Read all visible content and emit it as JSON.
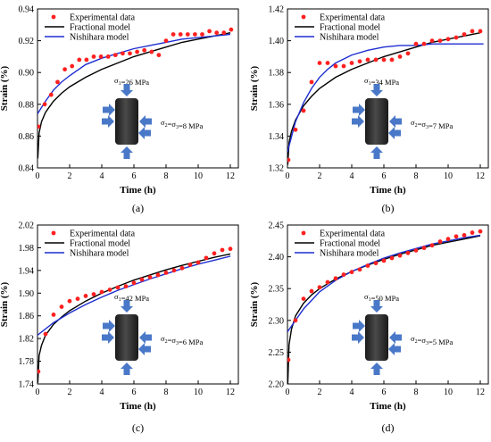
{
  "legend": {
    "experimental": "Experimental data",
    "fractional": "Fractional model",
    "nishihara": "Nishihara model"
  },
  "colors": {
    "experimental": "#ff2020",
    "fractional": "#000000",
    "nishihara": "#1f2fd0",
    "arrow": "#4a78c8",
    "cylinder": "#2f2f2f"
  },
  "chart_data": [
    {
      "type": "scatter",
      "panel_label": "(a)",
      "xlabel": "Time (h)",
      "ylabel": "Strain (%)",
      "xlim": [
        0,
        12.5
      ],
      "ylim": [
        0.84,
        0.94
      ],
      "xticks": [
        0,
        2,
        4,
        6,
        8,
        10,
        12
      ],
      "yticks": [
        0.84,
        0.86,
        0.88,
        0.9,
        0.92,
        0.94
      ],
      "ytick_decimals": 2,
      "legend_position": "top-left",
      "inset": {
        "sigma1": "σ1=26 MPa",
        "sigma23": "σ2=σ3=8 MPa"
      },
      "series": [
        {
          "name": "Experimental data",
          "x": [
            0.05,
            0.45,
            0.85,
            1.25,
            1.7,
            2.15,
            2.6,
            3.05,
            3.5,
            3.95,
            4.4,
            4.85,
            5.3,
            5.75,
            6.2,
            6.65,
            7.1,
            7.55,
            8.0,
            8.45,
            8.9,
            9.35,
            9.8,
            10.25,
            10.7,
            11.15,
            11.6,
            12.05
          ],
          "y": [
            0.866,
            0.88,
            0.886,
            0.894,
            0.902,
            0.904,
            0.908,
            0.908,
            0.91,
            0.91,
            0.91,
            0.911,
            0.912,
            0.912,
            0.913,
            0.914,
            0.913,
            0.911,
            0.92,
            0.924,
            0.924,
            0.924,
            0.924,
            0.924,
            0.926,
            0.925,
            0.925,
            0.927
          ]
        },
        {
          "name": "Fractional model",
          "x": [
            0.02,
            0.1,
            0.25,
            0.5,
            1,
            1.5,
            2,
            3,
            4,
            5,
            6,
            7,
            8,
            9,
            10,
            11,
            12
          ],
          "y": [
            0.846,
            0.862,
            0.869,
            0.875,
            0.882,
            0.887,
            0.891,
            0.897,
            0.902,
            0.906,
            0.91,
            0.913,
            0.916,
            0.919,
            0.921,
            0.923,
            0.925
          ]
        },
        {
          "name": "Nishihara model",
          "x": [
            0,
            0.5,
            1,
            1.5,
            2,
            3,
            4,
            5,
            6,
            7,
            8,
            9,
            10,
            11,
            12
          ],
          "y": [
            0.874,
            0.882,
            0.889,
            0.894,
            0.898,
            0.905,
            0.909,
            0.912,
            0.915,
            0.917,
            0.919,
            0.921,
            0.922,
            0.923,
            0.924
          ]
        }
      ]
    },
    {
      "type": "scatter",
      "panel_label": "(b)",
      "xlabel": "Time (h)",
      "ylabel": "Strain (%)",
      "xlim": [
        0,
        12.5
      ],
      "ylim": [
        1.32,
        1.42
      ],
      "xticks": [
        0,
        2,
        4,
        6,
        8,
        10,
        12
      ],
      "yticks": [
        1.32,
        1.34,
        1.36,
        1.38,
        1.4,
        1.42
      ],
      "ytick_decimals": 2,
      "legend_position": "top-left",
      "inset": {
        "sigma1": "σ1=34 MPa",
        "sigma23": "σ2=σ3=7 MPa"
      },
      "series": [
        {
          "name": "Experimental data",
          "x": [
            0.05,
            0.5,
            1.0,
            1.5,
            2.0,
            2.5,
            3.0,
            3.5,
            4.0,
            4.5,
            5.0,
            5.5,
            6.0,
            6.5,
            7.0,
            7.5,
            8.0,
            8.5,
            9.0,
            9.5,
            10.0,
            10.5,
            11.0,
            11.5,
            12.0
          ],
          "y": [
            1.325,
            1.344,
            1.356,
            1.374,
            1.386,
            1.386,
            1.384,
            1.384,
            1.386,
            1.387,
            1.388,
            1.388,
            1.388,
            1.388,
            1.39,
            1.392,
            1.398,
            1.398,
            1.4,
            1.4,
            1.401,
            1.402,
            1.404,
            1.406,
            1.406
          ]
        },
        {
          "name": "Fractional model",
          "x": [
            0.02,
            0.1,
            0.25,
            0.5,
            1,
            1.5,
            2,
            3,
            4,
            5,
            6,
            7,
            8,
            9,
            10,
            11,
            12
          ],
          "y": [
            1.322,
            1.336,
            1.343,
            1.35,
            1.359,
            1.365,
            1.37,
            1.377,
            1.382,
            1.386,
            1.39,
            1.393,
            1.396,
            1.399,
            1.401,
            1.403,
            1.405
          ]
        },
        {
          "name": "Nishihara model",
          "x": [
            0,
            0.5,
            1,
            1.5,
            2,
            2.5,
            3,
            4,
            5,
            6,
            7,
            8,
            9,
            10,
            11,
            12.2
          ],
          "y": [
            1.33,
            1.349,
            1.361,
            1.37,
            1.377,
            1.382,
            1.386,
            1.391,
            1.394,
            1.396,
            1.397,
            1.397,
            1.398,
            1.398,
            1.398,
            1.398
          ]
        }
      ]
    },
    {
      "type": "scatter",
      "panel_label": "(c)",
      "xlabel": "Time (h)",
      "ylabel": "Strain (%)",
      "xlim": [
        0,
        12.5
      ],
      "ylim": [
        1.74,
        2.02
      ],
      "xticks": [
        0,
        2,
        4,
        6,
        8,
        10,
        12
      ],
      "yticks": [
        1.74,
        1.78,
        1.82,
        1.86,
        1.9,
        1.94,
        1.98,
        2.02
      ],
      "ytick_decimals": 2,
      "legend_position": "top-left",
      "inset": {
        "sigma1": "σ1=42 MPa",
        "sigma23": "σ2=σ3=6 MPa"
      },
      "series": [
        {
          "name": "Experimental data",
          "x": [
            0.05,
            0.5,
            1.0,
            1.5,
            2.0,
            2.5,
            3.0,
            3.5,
            4.0,
            4.5,
            5.0,
            5.5,
            6.0,
            6.5,
            7.0,
            7.5,
            8.0,
            8.5,
            9.0,
            9.5,
            10.0,
            10.5,
            11.0,
            11.5,
            12.0
          ],
          "y": [
            1.762,
            1.828,
            1.862,
            1.876,
            1.886,
            1.89,
            1.895,
            1.898,
            1.902,
            1.906,
            1.91,
            1.912,
            1.918,
            1.924,
            1.928,
            1.932,
            1.936,
            1.94,
            1.944,
            1.95,
            1.954,
            1.962,
            1.97,
            1.976,
            1.978
          ]
        },
        {
          "name": "Fractional model",
          "x": [
            0.02,
            0.1,
            0.25,
            0.5,
            1,
            1.5,
            2,
            3,
            4,
            5,
            6,
            7,
            8,
            9,
            10,
            11,
            12
          ],
          "y": [
            1.742,
            1.79,
            1.808,
            1.826,
            1.845,
            1.858,
            1.869,
            1.886,
            1.9,
            1.912,
            1.923,
            1.932,
            1.941,
            1.949,
            1.956,
            1.963,
            1.969
          ]
        },
        {
          "name": "Nishihara model",
          "x": [
            0,
            1,
            2,
            3,
            4,
            5,
            6,
            7,
            8,
            9,
            10,
            11,
            12
          ],
          "y": [
            1.826,
            1.848,
            1.865,
            1.88,
            1.893,
            1.905,
            1.915,
            1.925,
            1.934,
            1.943,
            1.951,
            1.958,
            1.965
          ]
        }
      ]
    },
    {
      "type": "scatter",
      "panel_label": "(d)",
      "xlabel": "Time (h)",
      "ylabel": "Strain (%)",
      "xlim": [
        0,
        12.5
      ],
      "ylim": [
        2.2,
        2.45
      ],
      "xticks": [
        0,
        2,
        4,
        6,
        8,
        10,
        12
      ],
      "yticks": [
        2.2,
        2.25,
        2.3,
        2.35,
        2.4,
        2.45
      ],
      "ytick_decimals": 2,
      "legend_position": "top-left",
      "inset": {
        "sigma1": "σ1=50 MPa",
        "sigma23": "σ2=σ3=5 MPa"
      },
      "series": [
        {
          "name": "Experimental data",
          "x": [
            0.05,
            0.5,
            1.0,
            1.5,
            2.0,
            2.5,
            3.0,
            3.5,
            4.0,
            4.5,
            5.0,
            5.5,
            6.0,
            6.5,
            7.0,
            7.5,
            8.0,
            8.5,
            9.0,
            9.5,
            10.0,
            10.5,
            11.0,
            11.5,
            12.0
          ],
          "y": [
            2.238,
            2.3,
            2.334,
            2.346,
            2.352,
            2.36,
            2.366,
            2.372,
            2.376,
            2.38,
            2.386,
            2.39,
            2.394,
            2.398,
            2.402,
            2.406,
            2.41,
            2.414,
            2.418,
            2.424,
            2.428,
            2.432,
            2.434,
            2.438,
            2.44
          ]
        },
        {
          "name": "Fractional model",
          "x": [
            0.02,
            0.1,
            0.25,
            0.5,
            1,
            1.5,
            2,
            3,
            4,
            5,
            6,
            7,
            8,
            9,
            10,
            11,
            12
          ],
          "y": [
            2.2,
            2.262,
            2.286,
            2.307,
            2.327,
            2.34,
            2.35,
            2.365,
            2.377,
            2.387,
            2.396,
            2.404,
            2.411,
            2.418,
            2.423,
            2.428,
            2.433
          ]
        },
        {
          "name": "Nishihara model",
          "x": [
            0,
            1,
            2,
            3,
            4,
            5,
            6,
            7,
            8,
            9,
            10,
            11,
            12
          ],
          "y": [
            2.282,
            2.318,
            2.345,
            2.363,
            2.377,
            2.388,
            2.398,
            2.406,
            2.413,
            2.42,
            2.425,
            2.43,
            2.434
          ]
        }
      ]
    }
  ]
}
